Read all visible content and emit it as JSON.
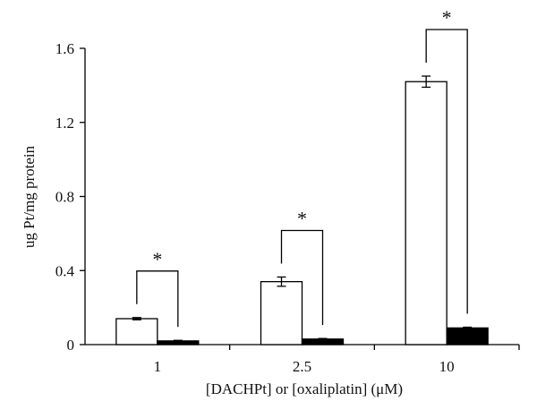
{
  "chart_data": {
    "type": "bar",
    "categories": [
      "1",
      "2.5",
      "10"
    ],
    "series": [
      {
        "fill": "#ffffff",
        "values": [
          0.14,
          0.34,
          1.42
        ],
        "errors": [
          0.006,
          0.025,
          0.03
        ]
      },
      {
        "fill": "#000000",
        "values": [
          0.02,
          0.03,
          0.09
        ],
        "errors": [
          0.003,
          0.003,
          0.004
        ]
      }
    ],
    "xlabel": "[DACHPt] or [oxaliplatin] (μM)",
    "ylabel": "ug Pt/mg protein",
    "ylim": [
      0,
      1.6
    ],
    "yticks": [
      "0",
      "0.4",
      "0.8",
      "1.2",
      "1.6"
    ],
    "grid": false,
    "significance": [
      {
        "label": "*",
        "category": "1"
      },
      {
        "label": "*",
        "category": "2.5"
      },
      {
        "label": "*",
        "category": "10"
      }
    ]
  }
}
